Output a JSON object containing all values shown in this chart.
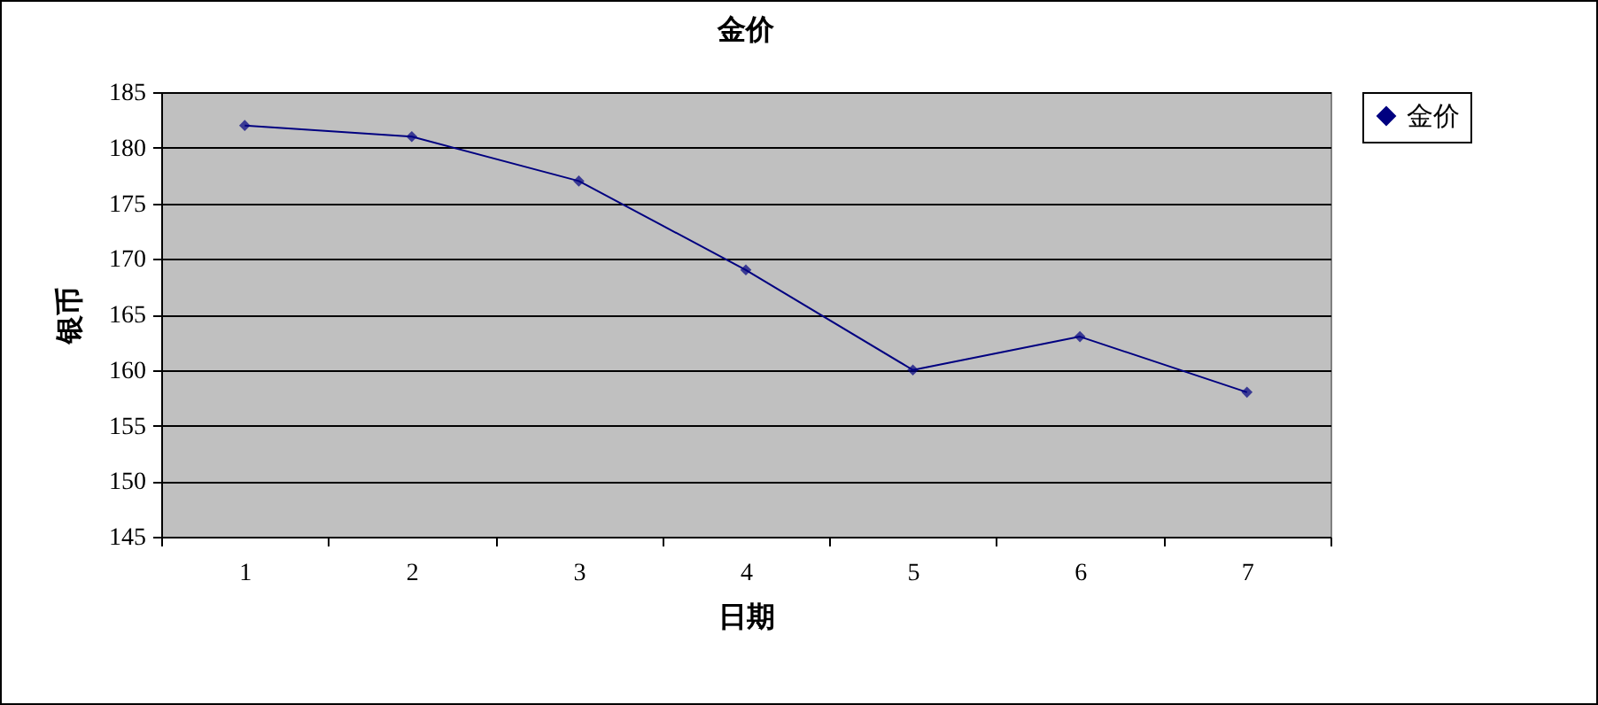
{
  "chart_data": {
    "type": "line",
    "title": "金价",
    "xlabel": "日期",
    "ylabel": "银币",
    "categories": [
      "1",
      "2",
      "3",
      "4",
      "5",
      "6",
      "7"
    ],
    "series": [
      {
        "name": "金价",
        "color": "#000080",
        "values": [
          182,
          181,
          177,
          169,
          160,
          163,
          158
        ]
      }
    ],
    "ylim": [
      145,
      185
    ],
    "yticks": [
      145,
      150,
      155,
      160,
      165,
      170,
      175,
      180,
      185
    ],
    "grid": "y",
    "legend": "right",
    "marker": "diamond",
    "line_style": "solid"
  }
}
